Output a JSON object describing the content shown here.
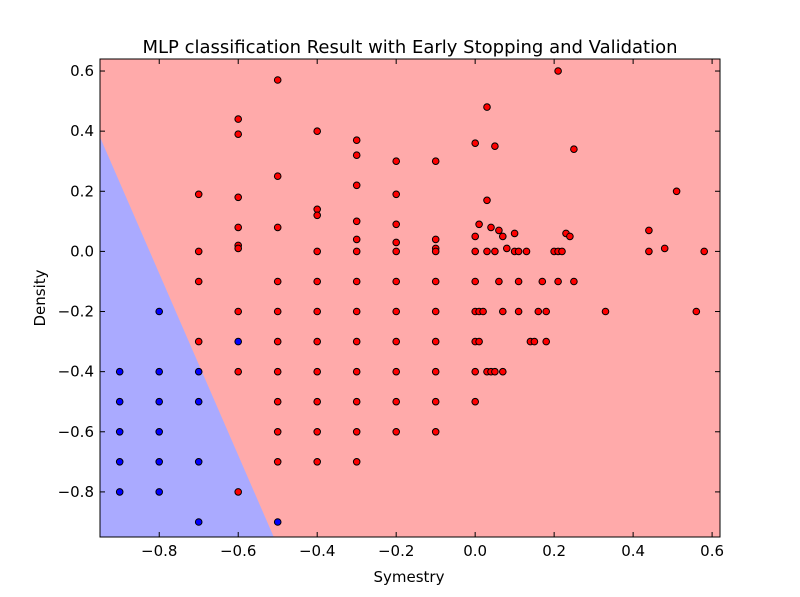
{
  "chart_data": {
    "type": "scatter",
    "title": "MLP classification Result with Early Stopping and Validation",
    "xlabel": "Symestry",
    "ylabel": "Density",
    "xlim": [
      -0.95,
      0.62
    ],
    "ylim": [
      -0.95,
      0.64
    ],
    "x_ticks": [
      -0.8,
      -0.6,
      -0.4,
      -0.2,
      0.0,
      0.2,
      0.4,
      0.6
    ],
    "y_ticks": [
      -0.8,
      -0.6,
      -0.4,
      -0.2,
      0.0,
      0.2,
      0.4,
      0.6
    ],
    "x_tick_labels": [
      "−0.8",
      "−0.6",
      "−0.4",
      "−0.2",
      "0.0",
      "0.2",
      "0.4",
      "0.6"
    ],
    "y_tick_labels": [
      "−0.8",
      "−0.6",
      "−0.4",
      "−0.2",
      "0.0",
      "0.2",
      "0.4",
      "0.6"
    ],
    "grid": false,
    "decision_boundary": {
      "points": [
        [
          -0.95,
          0.38
        ],
        [
          -0.51,
          -0.95
        ]
      ],
      "left_region_color": "#aaaaff",
      "right_region_color": "#ffaaaa"
    },
    "series": [
      {
        "color": "#0000ff",
        "points": [
          [
            -0.9,
            -0.4
          ],
          [
            -0.9,
            -0.5
          ],
          [
            -0.9,
            -0.6
          ],
          [
            -0.9,
            -0.7
          ],
          [
            -0.9,
            -0.8
          ],
          [
            -0.8,
            -0.2
          ],
          [
            -0.8,
            -0.4
          ],
          [
            -0.8,
            -0.5
          ],
          [
            -0.8,
            -0.6
          ],
          [
            -0.8,
            -0.7
          ],
          [
            -0.8,
            -0.8
          ],
          [
            -0.7,
            -0.4
          ],
          [
            -0.7,
            -0.5
          ],
          [
            -0.7,
            -0.7
          ],
          [
            -0.7,
            -0.9
          ],
          [
            -0.6,
            -0.3
          ],
          [
            -0.5,
            -0.9
          ]
        ]
      },
      {
        "color": "#ff0000",
        "points": [
          [
            -0.7,
            0.19
          ],
          [
            -0.7,
            0.0
          ],
          [
            -0.7,
            -0.1
          ],
          [
            -0.7,
            -0.3
          ],
          [
            -0.6,
            0.44
          ],
          [
            -0.6,
            0.39
          ],
          [
            -0.6,
            0.18
          ],
          [
            -0.6,
            0.08
          ],
          [
            -0.6,
            0.02
          ],
          [
            -0.6,
            0.01
          ],
          [
            -0.6,
            -0.2
          ],
          [
            -0.6,
            -0.4
          ],
          [
            -0.6,
            -0.8
          ],
          [
            -0.5,
            0.57
          ],
          [
            -0.5,
            0.25
          ],
          [
            -0.5,
            0.08
          ],
          [
            -0.5,
            -0.1
          ],
          [
            -0.5,
            -0.2
          ],
          [
            -0.5,
            -0.3
          ],
          [
            -0.5,
            -0.4
          ],
          [
            -0.5,
            -0.5
          ],
          [
            -0.5,
            -0.6
          ],
          [
            -0.5,
            -0.7
          ],
          [
            -0.4,
            0.4
          ],
          [
            -0.4,
            0.14
          ],
          [
            -0.4,
            0.12
          ],
          [
            -0.4,
            0.0
          ],
          [
            -0.4,
            -0.1
          ],
          [
            -0.4,
            -0.2
          ],
          [
            -0.4,
            -0.3
          ],
          [
            -0.4,
            -0.4
          ],
          [
            -0.4,
            -0.5
          ],
          [
            -0.4,
            -0.6
          ],
          [
            -0.4,
            -0.7
          ],
          [
            -0.3,
            0.37
          ],
          [
            -0.3,
            0.32
          ],
          [
            -0.3,
            0.22
          ],
          [
            -0.3,
            0.1
          ],
          [
            -0.3,
            0.04
          ],
          [
            -0.3,
            0.0
          ],
          [
            -0.3,
            -0.1
          ],
          [
            -0.3,
            -0.2
          ],
          [
            -0.3,
            -0.3
          ],
          [
            -0.3,
            -0.4
          ],
          [
            -0.3,
            -0.5
          ],
          [
            -0.3,
            -0.6
          ],
          [
            -0.3,
            -0.7
          ],
          [
            -0.2,
            0.3
          ],
          [
            -0.2,
            0.19
          ],
          [
            -0.2,
            0.09
          ],
          [
            -0.2,
            0.03
          ],
          [
            -0.2,
            0.0
          ],
          [
            -0.2,
            -0.1
          ],
          [
            -0.2,
            -0.2
          ],
          [
            -0.2,
            -0.3
          ],
          [
            -0.2,
            -0.4
          ],
          [
            -0.2,
            -0.5
          ],
          [
            -0.2,
            -0.6
          ],
          [
            -0.1,
            0.3
          ],
          [
            -0.1,
            0.04
          ],
          [
            -0.1,
            0.01
          ],
          [
            -0.1,
            0.0
          ],
          [
            -0.1,
            -0.1
          ],
          [
            -0.1,
            -0.2
          ],
          [
            -0.1,
            -0.3
          ],
          [
            -0.1,
            -0.4
          ],
          [
            -0.1,
            -0.5
          ],
          [
            -0.1,
            -0.6
          ],
          [
            0.0,
            0.36
          ],
          [
            0.0,
            0.05
          ],
          [
            0.0,
            0.0
          ],
          [
            0.0,
            -0.1
          ],
          [
            0.0,
            -0.2
          ],
          [
            0.0,
            -0.3
          ],
          [
            0.0,
            -0.4
          ],
          [
            0.0,
            -0.5
          ],
          [
            0.01,
            0.09
          ],
          [
            0.01,
            -0.2
          ],
          [
            0.01,
            -0.3
          ],
          [
            0.02,
            -0.2
          ],
          [
            0.03,
            0.48
          ],
          [
            0.03,
            0.17
          ],
          [
            0.03,
            0.0
          ],
          [
            0.03,
            -0.4
          ],
          [
            0.04,
            0.08
          ],
          [
            0.04,
            -0.4
          ],
          [
            0.05,
            0.35
          ],
          [
            0.05,
            0.0
          ],
          [
            0.05,
            -0.4
          ],
          [
            0.06,
            0.07
          ],
          [
            0.06,
            -0.1
          ],
          [
            0.07,
            0.05
          ],
          [
            0.07,
            -0.2
          ],
          [
            0.07,
            -0.4
          ],
          [
            0.08,
            0.01
          ],
          [
            0.1,
            0.06
          ],
          [
            0.1,
            0.0
          ],
          [
            0.11,
            0.0
          ],
          [
            0.11,
            -0.1
          ],
          [
            0.11,
            -0.2
          ],
          [
            0.13,
            0.0
          ],
          [
            0.14,
            -0.3
          ],
          [
            0.15,
            -0.3
          ],
          [
            0.16,
            -0.2
          ],
          [
            0.17,
            -0.1
          ],
          [
            0.18,
            -0.2
          ],
          [
            0.18,
            -0.3
          ],
          [
            0.2,
            0.0
          ],
          [
            0.21,
            0.6
          ],
          [
            0.21,
            0.0
          ],
          [
            0.21,
            -0.1
          ],
          [
            0.22,
            0.0
          ],
          [
            0.23,
            0.06
          ],
          [
            0.24,
            0.05
          ],
          [
            0.25,
            0.34
          ],
          [
            0.25,
            -0.1
          ],
          [
            0.33,
            -0.2
          ],
          [
            0.44,
            0.07
          ],
          [
            0.44,
            0.0
          ],
          [
            0.48,
            0.01
          ],
          [
            0.51,
            0.2
          ],
          [
            0.56,
            -0.2
          ],
          [
            0.58,
            0.0
          ]
        ]
      }
    ]
  }
}
